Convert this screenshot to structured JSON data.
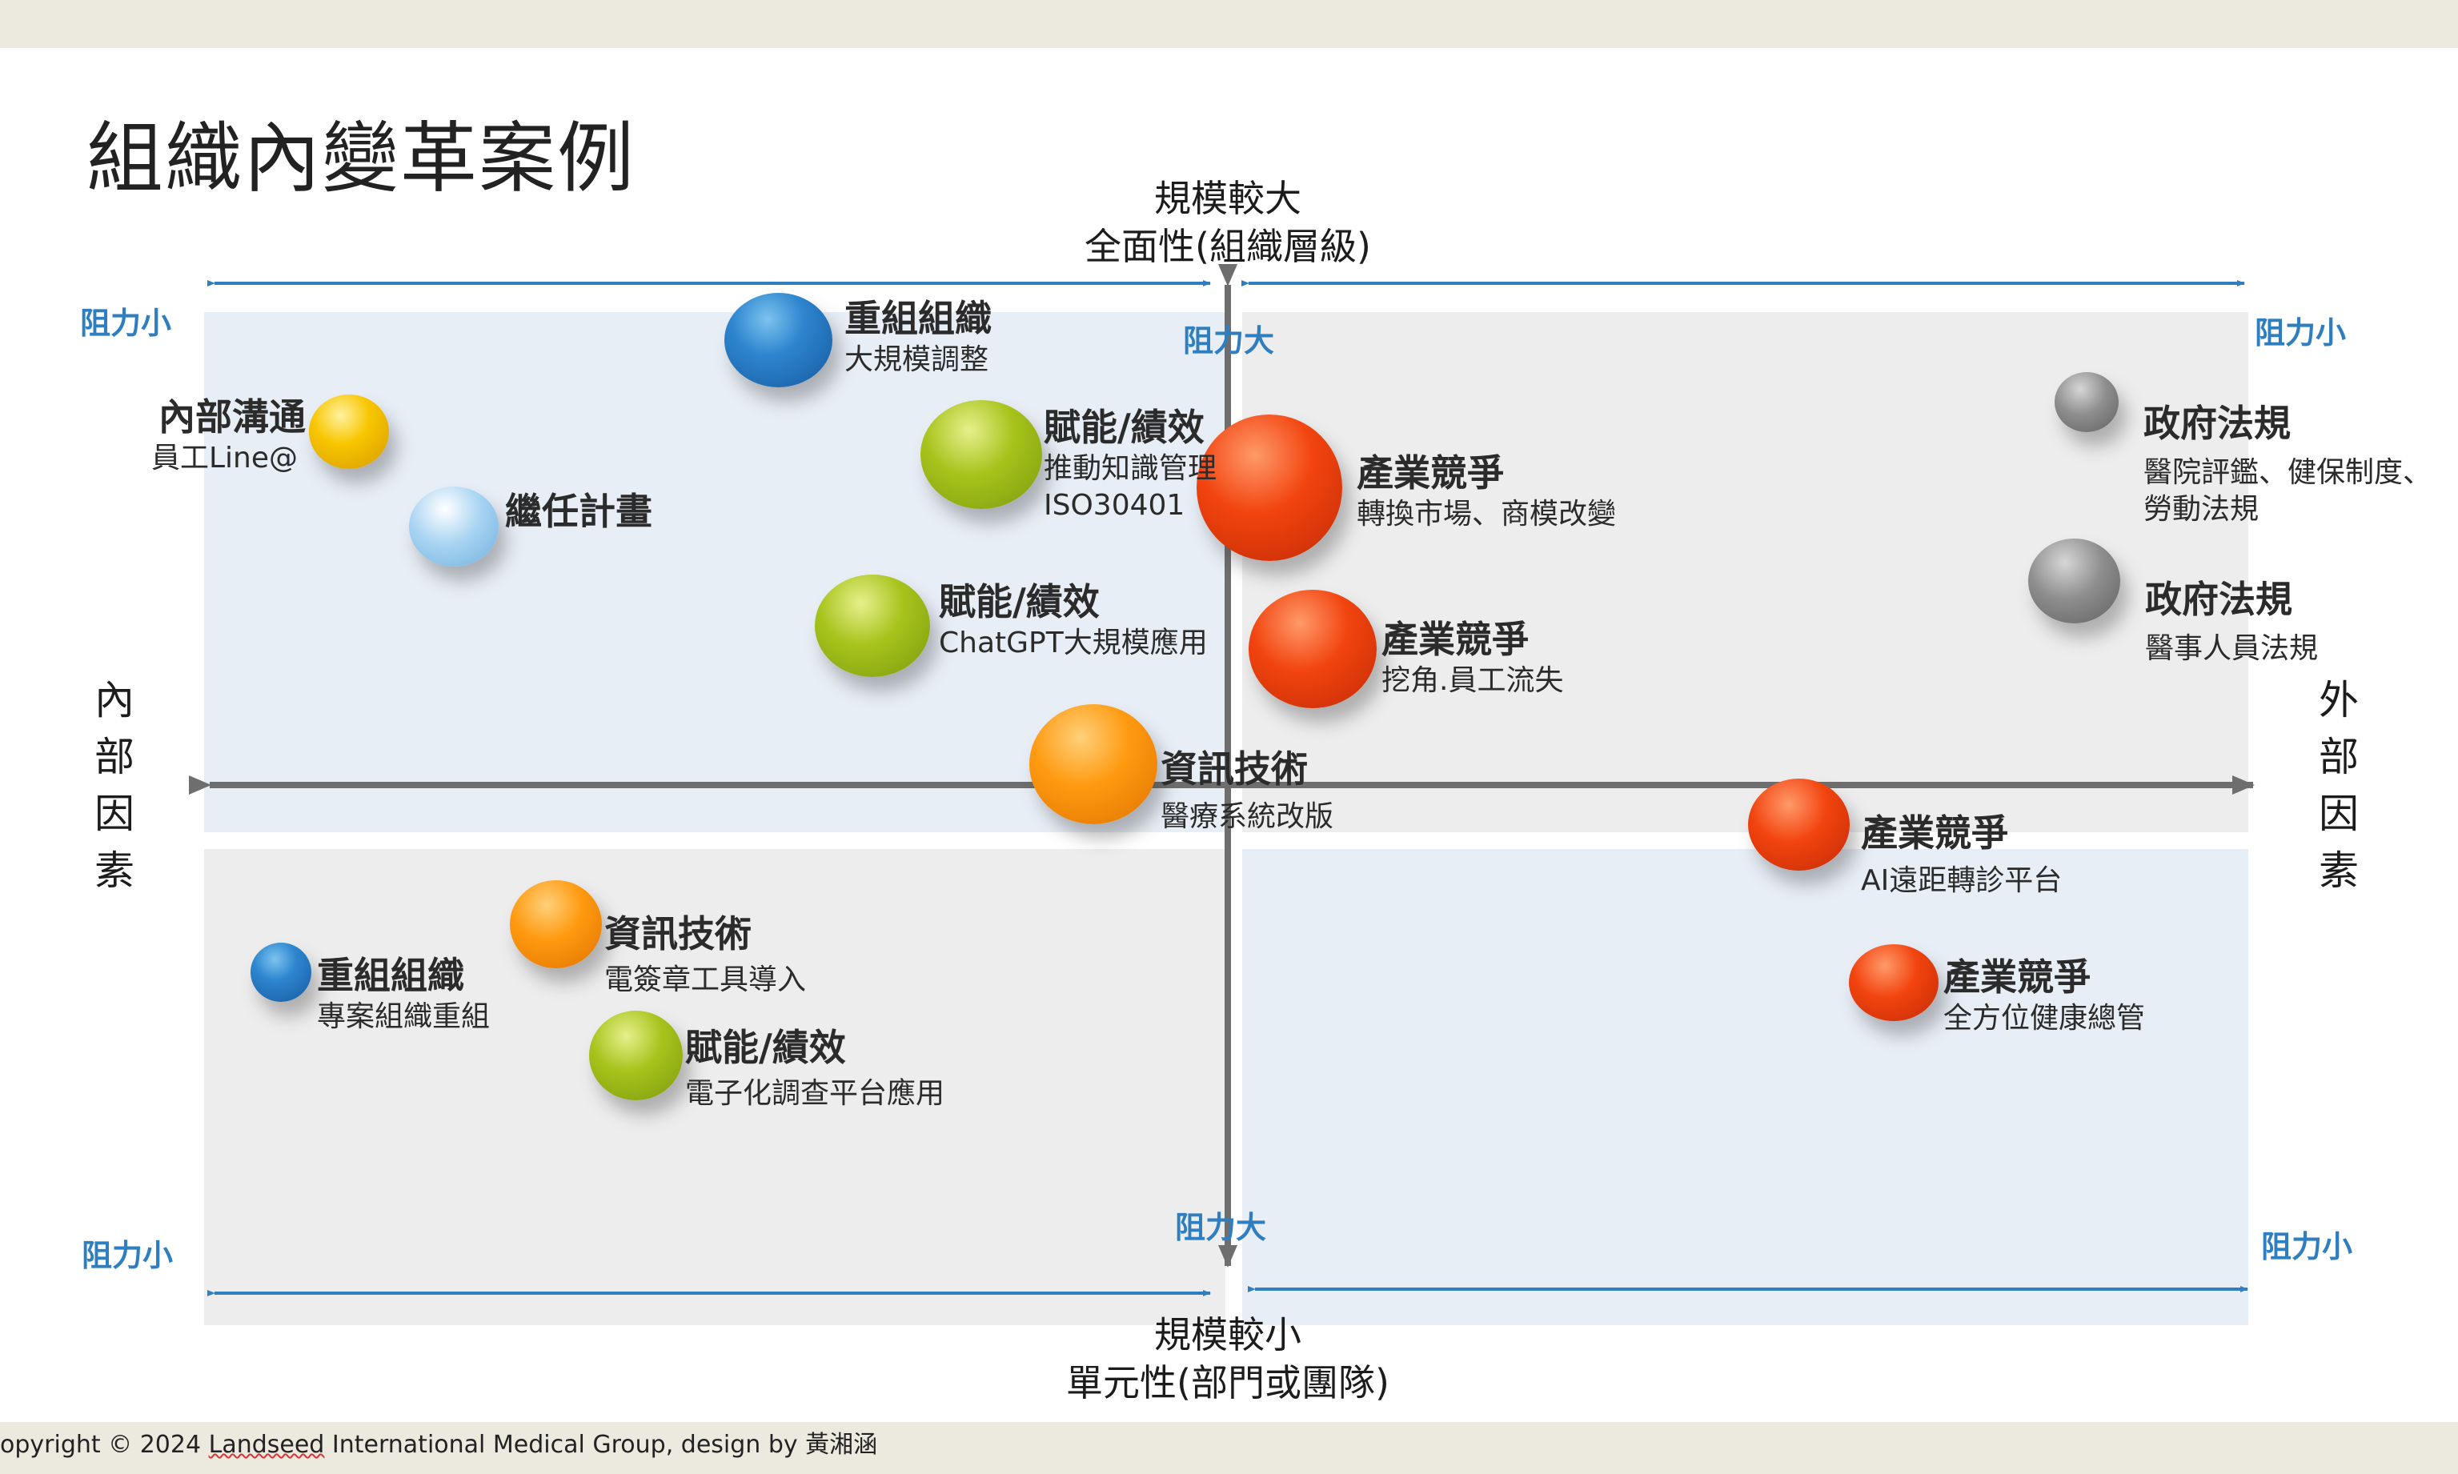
{
  "title": "組織內變革案例",
  "axes": {
    "top": [
      "規模較大",
      "全面性(組織層級)"
    ],
    "bottom": [
      "規模較小",
      "單元性(部門或團隊)"
    ],
    "left": [
      "內",
      "部",
      "因",
      "素"
    ],
    "right": [
      "外",
      "部",
      "因",
      "素"
    ]
  },
  "resistance": {
    "top_left": "阻力小",
    "top_center": "阻力大",
    "top_right": "阻力小",
    "bottom_left": "阻力小",
    "bottom_center": "阻力大",
    "bottom_right": "阻力小"
  },
  "items": [
    {
      "title": "重組組織",
      "subtitle": "大規模調整",
      "color": "#2d86cf"
    },
    {
      "title": "內部溝通",
      "subtitle": "員工Line@",
      "color": "#f8c600"
    },
    {
      "title": "繼任計畫",
      "subtitle": "",
      "color": "#a9d4f2"
    },
    {
      "title": "賦能/績效",
      "subtitle": "推動知識管理",
      "subtitle2": "ISO30401",
      "color": "#a7c31b"
    },
    {
      "title": "賦能/績效",
      "subtitle": "ChatGPT大規模應用",
      "color": "#a7c31b"
    },
    {
      "title": "產業競爭",
      "subtitle": "轉換市場、商模改變",
      "color": "#f2440f"
    },
    {
      "title": "產業競爭",
      "subtitle": "挖角.員工流失",
      "color": "#f2440f"
    },
    {
      "title": "政府法規",
      "subtitle": "醫院評鑑、健保制度、",
      "subtitle2": "勞動法規",
      "color": "#8e8e8e"
    },
    {
      "title": "政府法規",
      "subtitle": "醫事人員法規",
      "color": "#8e8e8e"
    },
    {
      "title": "資訊技術",
      "subtitle": "醫療系統改版",
      "color": "#ff9a10"
    },
    {
      "title": "產業競爭",
      "subtitle": "AI遠距轉診平台",
      "color": "#f2440f"
    },
    {
      "title": "資訊技術",
      "subtitle": "電簽章工具導入",
      "color": "#ff9a10"
    },
    {
      "title": "重組組織",
      "subtitle": "專案組織重組",
      "color": "#2d86cf"
    },
    {
      "title": "產業競爭",
      "subtitle": "全方位健康總管",
      "color": "#f2440f"
    },
    {
      "title": "賦能/績效",
      "subtitle": "電子化調查平台應用",
      "color": "#a7c31b"
    }
  ],
  "copyright": {
    "pre": "opyright © 2024 ",
    "underlined": "Landseed",
    "post": " International Medical Group, design by 黃湘涵"
  }
}
